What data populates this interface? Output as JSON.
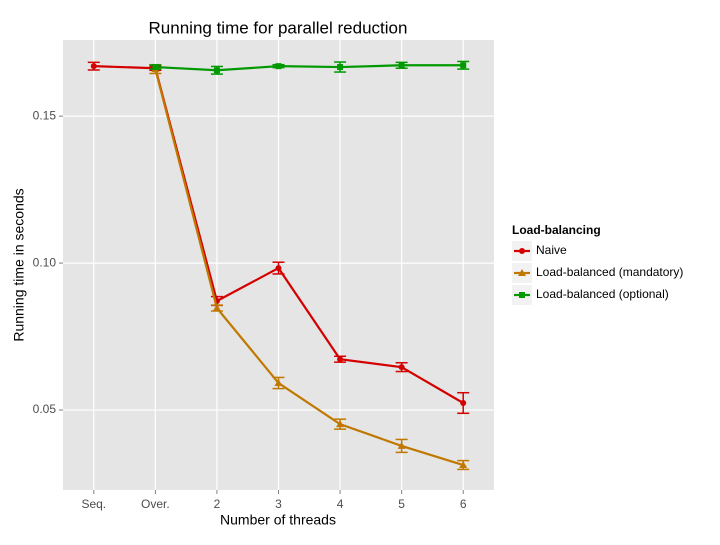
{
  "chart_data": {
    "type": "line",
    "title": "Running time for parallel reduction",
    "x_label": "Number of threads",
    "y_label": "Running time in seconds",
    "categories": [
      "Seq.",
      "Over.",
      "2",
      "3",
      "4",
      "5",
      "6"
    ],
    "ylim": [
      0.0228,
      0.1759
    ],
    "yticks": [
      {
        "value": 0.05,
        "label": "0.05"
      },
      {
        "value": 0.1,
        "label": "0.10"
      },
      0.15
    ],
    "grid": true,
    "legend_title": "Load-balancing",
    "legend_position": "right",
    "series": [
      {
        "name": "Naive",
        "color": "#d40000",
        "marker": "circle",
        "values": [
          0.167,
          0.1663,
          0.0871,
          0.0983,
          0.0673,
          0.0646,
          0.0524
        ],
        "errors": [
          0.0013,
          0.0007,
          0.0015,
          0.002,
          0.001,
          0.0015,
          0.0035
        ]
      },
      {
        "name": "Load-balanced (mandatory)",
        "color": "#c07800",
        "marker": "triangle",
        "values": [
          null,
          0.166,
          0.0847,
          0.0592,
          0.0452,
          0.0378,
          0.0313
        ],
        "errors": [
          null,
          0.0015,
          0.001,
          0.0019,
          0.0017,
          0.0022,
          0.0015
        ]
      },
      {
        "name": "Load-balanced (optional)",
        "color": "#009900",
        "marker": "square",
        "values": [
          null,
          0.1667,
          0.1656,
          0.167,
          0.1667,
          0.1673,
          0.1673
        ],
        "errors": [
          null,
          0.0007,
          0.0013,
          0.0005,
          0.0017,
          0.001,
          0.0013
        ]
      }
    ]
  }
}
